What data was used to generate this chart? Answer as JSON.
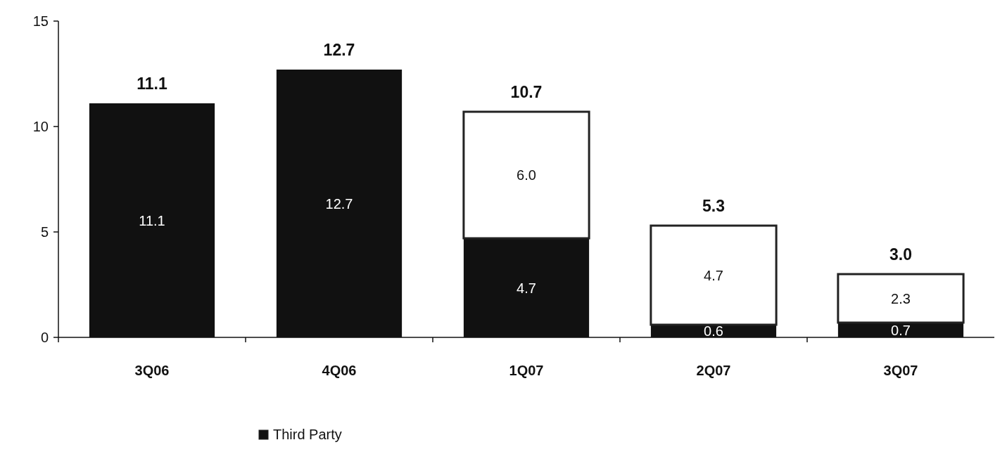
{
  "chart_data": {
    "type": "bar",
    "stacked": true,
    "categories": [
      "3Q06",
      "4Q06",
      "1Q07",
      "2Q07",
      "3Q07"
    ],
    "series": [
      {
        "name": "Third Party",
        "color": "#111111",
        "values": [
          11.1,
          12.7,
          4.7,
          0.6,
          0.7
        ],
        "value_labels": [
          "11.1",
          "12.7",
          "4.7",
          "0.6",
          "0.7"
        ]
      },
      {
        "color": "#ffffff",
        "values": [
          null,
          null,
          6.0,
          4.7,
          2.3
        ],
        "value_labels": [
          null,
          null,
          "6.0",
          "4.7",
          "2.3"
        ]
      }
    ],
    "totals": [
      "11.1",
      "12.7",
      "10.7",
      "5.3",
      "3.0"
    ],
    "ylim": [
      0,
      15
    ],
    "yticks": [
      0,
      5,
      10,
      15
    ],
    "grid": false,
    "legend": "bottom"
  }
}
